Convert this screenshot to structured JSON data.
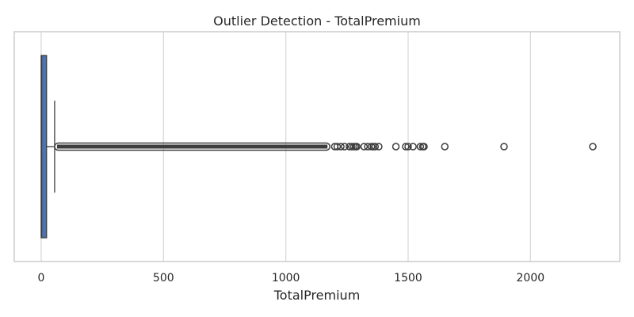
{
  "chart_data": {
    "type": "boxplot",
    "title": "Outlier Detection - TotalPremium",
    "xlabel": "TotalPremium",
    "ylabel": "",
    "orientation": "horizontal",
    "xlim": [
      -110,
      2365
    ],
    "x_ticks": [
      0,
      500,
      1000,
      1500,
      2000
    ],
    "x_tick_labels": [
      "0",
      "500",
      "1000",
      "1500",
      "2000"
    ],
    "grid": "vertical",
    "box": {
      "min": 0,
      "q1": 0,
      "median": 2,
      "q3": 22,
      "whisker_high": 55,
      "fill": "#4c72b0"
    },
    "outliers_dense_range": [
      55,
      1180
    ],
    "outliers": [
      1200,
      1210,
      1225,
      1240,
      1260,
      1270,
      1278,
      1285,
      1290,
      1320,
      1335,
      1350,
      1358,
      1365,
      1380,
      1450,
      1490,
      1500,
      1520,
      1550,
      1560,
      1565,
      1650,
      1892,
      2255
    ],
    "colors": {
      "outlier": "#3d3d3d",
      "whisker": "#3d3d3d",
      "grid": "#d9d9d9",
      "frame": "#cccccc"
    }
  }
}
